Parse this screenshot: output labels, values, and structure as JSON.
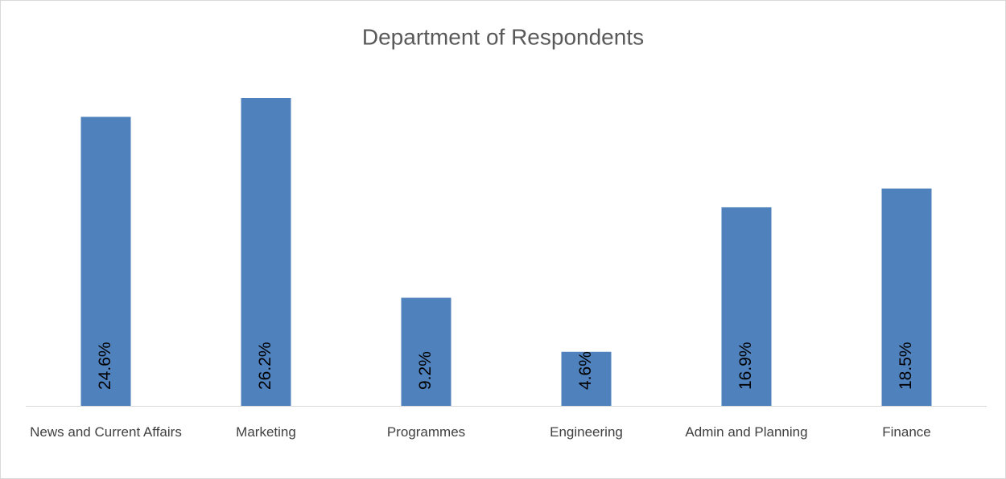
{
  "chart_data": {
    "type": "bar",
    "title": "Department of Respondents",
    "categories": [
      "News and Current Affairs",
      "Marketing",
      "Programmes",
      "Engineering",
      "Admin and Planning",
      "Finance"
    ],
    "values": [
      24.6,
      26.2,
      9.2,
      4.6,
      16.9,
      18.5
    ],
    "value_labels": [
      "24.6%",
      "26.2%",
      "9.2%",
      "4.6%",
      "16.9%",
      "18.5%"
    ],
    "color": "#4f81bd"
  }
}
